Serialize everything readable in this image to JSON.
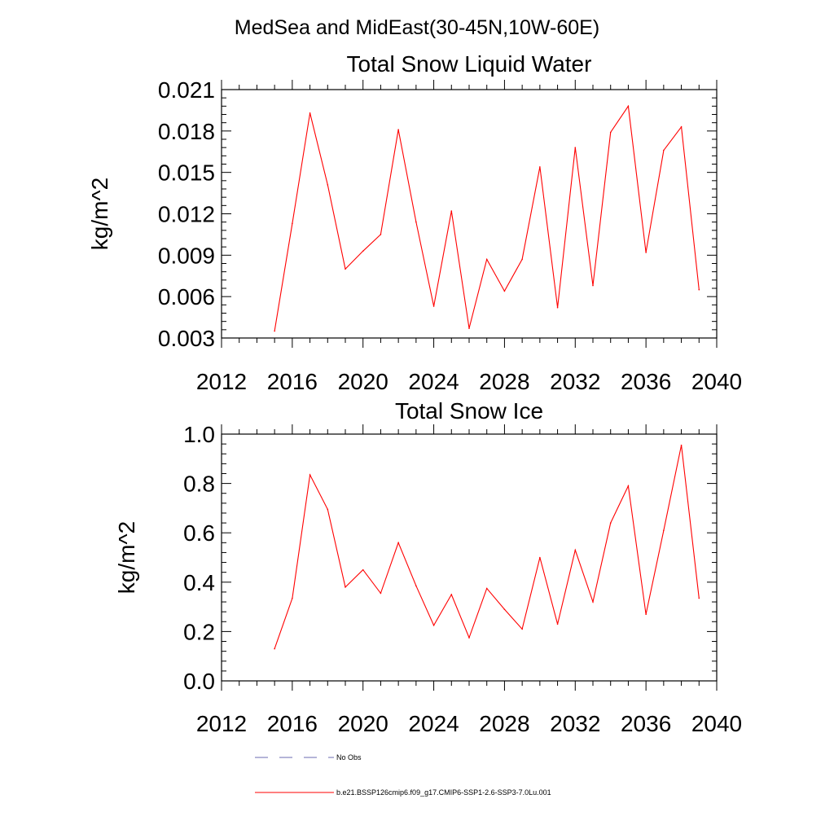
{
  "figure": {
    "title": "MedSea and MidEast(30-45N,10W-60E)"
  },
  "legend": {
    "entries": [
      {
        "label": "No Obs",
        "color": "#6b6bb0",
        "dash": "dashed"
      },
      {
        "label": "b.e21.BSSP126cmip6.f09_g17.CMIP6-SSP1-2.6-SSP3-7.0Lu.001",
        "color": "#ff0000",
        "dash": "solid"
      }
    ]
  },
  "chart_data": [
    {
      "type": "line",
      "title": "Total Snow Liquid Water",
      "xlabel": "",
      "ylabel": "kg/m^2",
      "xlim": [
        2012,
        2040
      ],
      "ylim": [
        0.003,
        0.021
      ],
      "xticks": [
        2012,
        2016,
        2020,
        2024,
        2028,
        2032,
        2036,
        2040
      ],
      "xtick_labels": [
        "2012",
        "2016",
        "2020",
        "2024",
        "2028",
        "2032",
        "2036",
        "2040"
      ],
      "yticks": [
        0.003,
        0.006,
        0.009,
        0.012,
        0.015,
        0.018,
        0.021
      ],
      "ytick_labels": [
        "0.003",
        "0.006",
        "0.009",
        "0.012",
        "0.015",
        "0.018",
        "0.021"
      ],
      "grid": false,
      "series": [
        {
          "name": "b.e21.BSSP126cmip6.f09_g17.CMIP6-SSP1-2.6-SSP3-7.0Lu.001",
          "color": "#ff0000",
          "x": [
            2015,
            2016,
            2017,
            2018,
            2019,
            2020,
            2021,
            2022,
            2023,
            2024,
            2025,
            2026,
            2027,
            2028,
            2029,
            2030,
            2031,
            2032,
            2033,
            2034,
            2035,
            2036,
            2037,
            2038,
            2039
          ],
          "y": [
            0.0035,
            0.0113,
            0.0193,
            0.0141,
            0.008,
            0.0093,
            0.0105,
            0.0181,
            0.0114,
            0.0053,
            0.0122,
            0.0037,
            0.0087,
            0.0064,
            0.0087,
            0.0154,
            0.0052,
            0.0168,
            0.0068,
            0.0179,
            0.0198,
            0.0092,
            0.0166,
            0.0183,
            0.0065
          ]
        }
      ]
    },
    {
      "type": "line",
      "title": "Total Snow Ice",
      "xlabel": "",
      "ylabel": "kg/m^2",
      "xlim": [
        2012,
        2040
      ],
      "ylim": [
        0.0,
        1.0
      ],
      "xticks": [
        2012,
        2016,
        2020,
        2024,
        2028,
        2032,
        2036,
        2040
      ],
      "xtick_labels": [
        "2012",
        "2016",
        "2020",
        "2024",
        "2028",
        "2032",
        "2036",
        "2040"
      ],
      "yticks": [
        0.0,
        0.2,
        0.4,
        0.6,
        0.8,
        1.0
      ],
      "ytick_labels": [
        "0.0",
        "0.2",
        "0.4",
        "0.6",
        "0.8",
        "1.0"
      ],
      "grid": false,
      "series": [
        {
          "name": "b.e21.BSSP126cmip6.f09_g17.CMIP6-SSP1-2.6-SSP3-7.0Lu.001",
          "color": "#ff0000",
          "x": [
            2015,
            2016,
            2017,
            2018,
            2019,
            2020,
            2021,
            2022,
            2023,
            2024,
            2025,
            2026,
            2027,
            2028,
            2029,
            2030,
            2031,
            2032,
            2033,
            2034,
            2035,
            2036,
            2037,
            2038,
            2039
          ],
          "y": [
            0.13,
            0.335,
            0.835,
            0.695,
            0.38,
            0.45,
            0.355,
            0.56,
            0.385,
            0.225,
            0.35,
            0.175,
            0.375,
            0.29,
            0.21,
            0.5,
            0.23,
            0.53,
            0.32,
            0.64,
            0.79,
            0.27,
            0.61,
            0.955,
            0.335
          ]
        }
      ]
    }
  ]
}
